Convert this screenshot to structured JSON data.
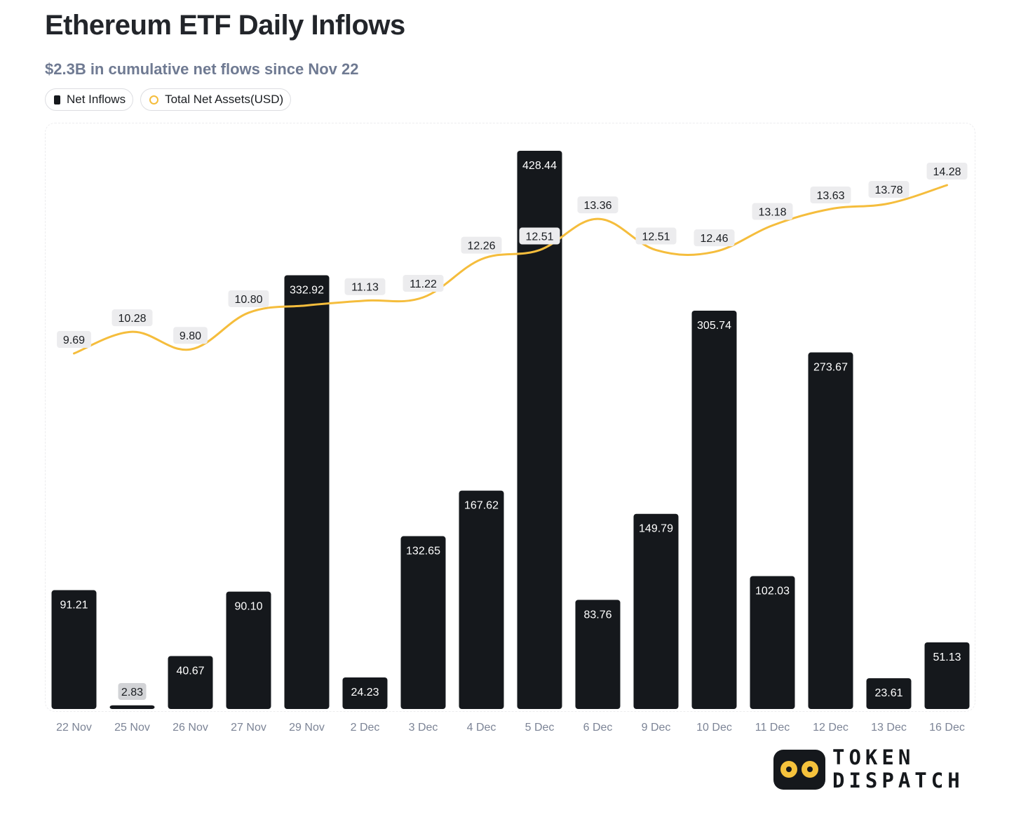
{
  "title": "Ethereum ETF Daily Inflows",
  "subtitle": "$2.3B in cumulative net flows since Nov 22",
  "legend": {
    "bar_label": "Net Inflows",
    "line_label": "Total Net Assets(USD)"
  },
  "colors": {
    "bar": "#15181c",
    "line": "#f5bd3c",
    "bar_label_text": "#ffffff",
    "line_label_bg": "#ececee",
    "axis_text": "#7c8496"
  },
  "chart_data": {
    "type": "bar",
    "categories": [
      "22 Nov",
      "25 Nov",
      "26 Nov",
      "27 Nov",
      "29 Nov",
      "2 Dec",
      "3 Dec",
      "4 Dec",
      "5 Dec",
      "6 Dec",
      "9 Dec",
      "10 Dec",
      "11 Dec",
      "12 Dec",
      "13 Dec",
      "16 Dec"
    ],
    "series": [
      {
        "name": "Net Inflows",
        "type": "bar",
        "values": [
          91.21,
          2.83,
          40.67,
          90.1,
          332.92,
          24.23,
          132.65,
          167.62,
          428.44,
          83.76,
          149.79,
          305.74,
          102.03,
          273.67,
          23.61,
          51.13
        ],
        "labels": [
          "91.21",
          "2.83",
          "40.67",
          "90.10",
          "332.92",
          "24.23",
          "132.65",
          "167.62",
          "428.44",
          "83.76",
          "149.79",
          "305.74",
          "102.03",
          "273.67",
          "23.61",
          "51.13"
        ]
      },
      {
        "name": "Total Net Assets(USD)",
        "type": "line",
        "values": [
          9.69,
          10.28,
          9.8,
          10.8,
          11.0,
          11.13,
          11.22,
          12.26,
          12.51,
          13.36,
          12.51,
          12.46,
          13.18,
          13.63,
          13.78,
          14.28
        ],
        "labels": [
          "9.69",
          "10.28",
          "9.80",
          "10.80",
          "",
          "11.13",
          "11.22",
          "12.26",
          "12.51",
          "13.36",
          "12.51",
          "12.46",
          "13.18",
          "13.63",
          "13.78",
          "14.28"
        ]
      }
    ],
    "ylim_bars": [
      0,
      450
    ],
    "ylim_line": [
      4.5,
      15.5
    ],
    "grid": false
  },
  "logo": {
    "line1": "TOKEN",
    "line2": "DISPATCH"
  }
}
